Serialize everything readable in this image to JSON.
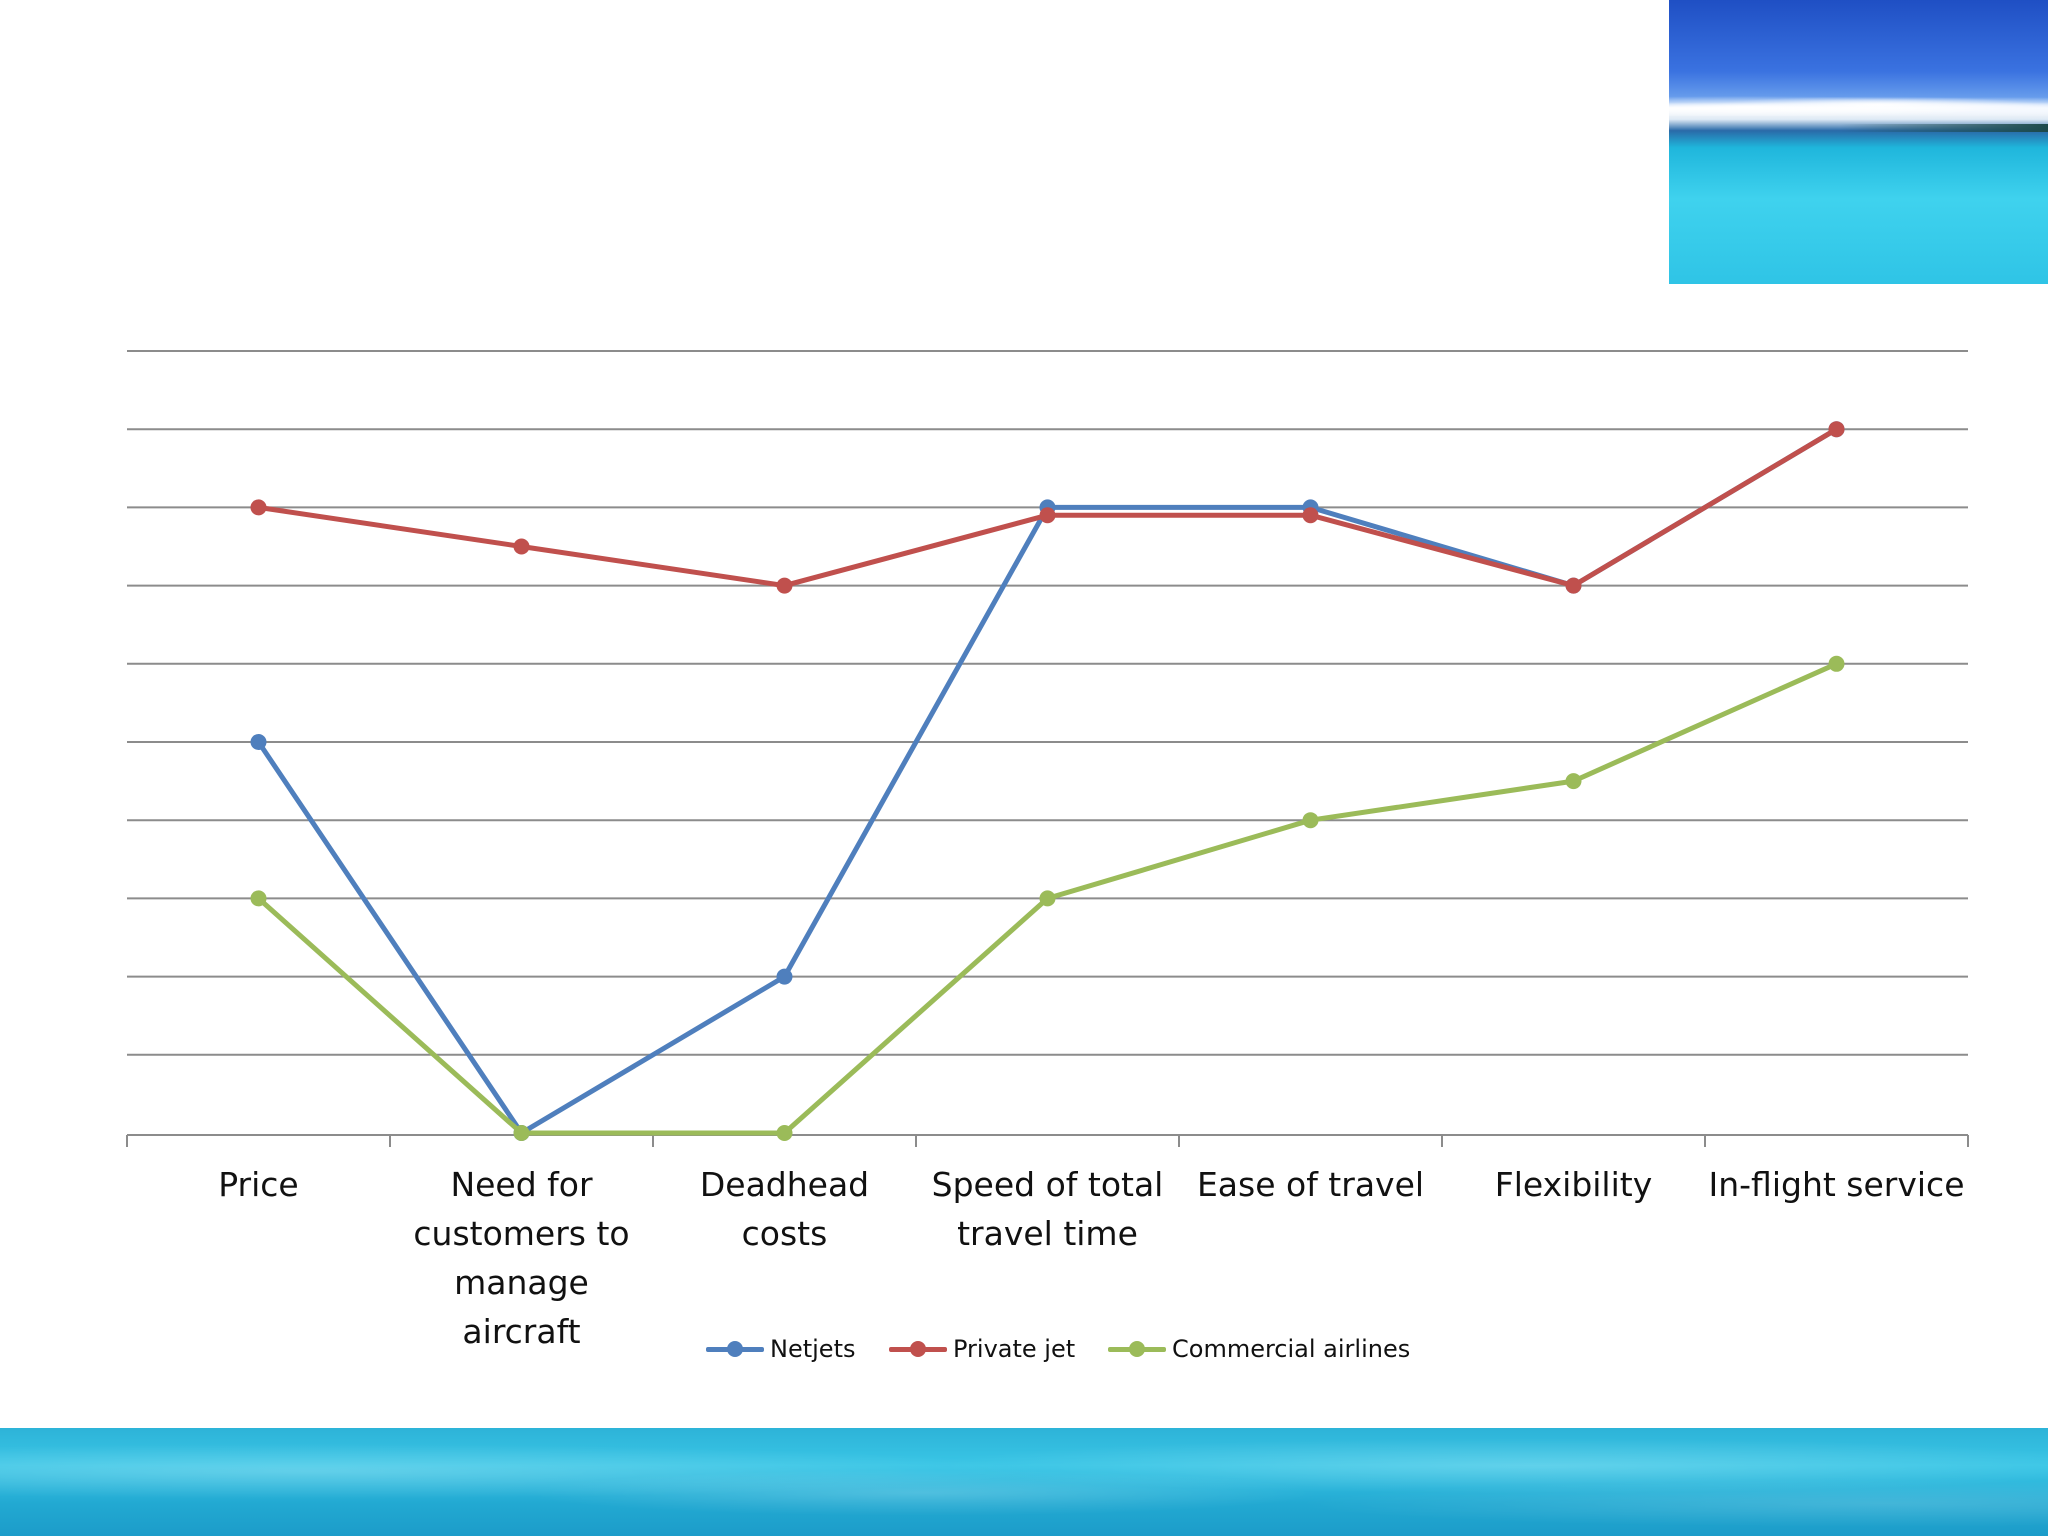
{
  "chart_data": {
    "type": "line",
    "categories": [
      "Price",
      "Need for\ncustomers to\nmanage aircraft",
      "Deadhead costs",
      "Speed of total\ntravel time",
      "Ease of travel",
      "Flexibility",
      "In-flight service"
    ],
    "series": [
      {
        "name": "Netjets",
        "color": "#4f7fbd",
        "values": [
          5,
          0,
          2,
          8,
          8,
          7,
          9
        ]
      },
      {
        "name": "Private jet",
        "color": "#c0504d",
        "values": [
          8,
          7.5,
          7,
          7.9,
          7.9,
          7,
          9
        ]
      },
      {
        "name": "Commercial airlines",
        "color": "#9bbb59",
        "values": [
          3,
          0,
          0,
          3,
          4,
          4.5,
          6
        ]
      }
    ],
    "ylim": [
      0,
      10
    ],
    "grid": true,
    "legend": "bottom"
  },
  "decor": {
    "photo_icon": "tropical-sea-photo",
    "footer_icon": "water-texture-band"
  }
}
